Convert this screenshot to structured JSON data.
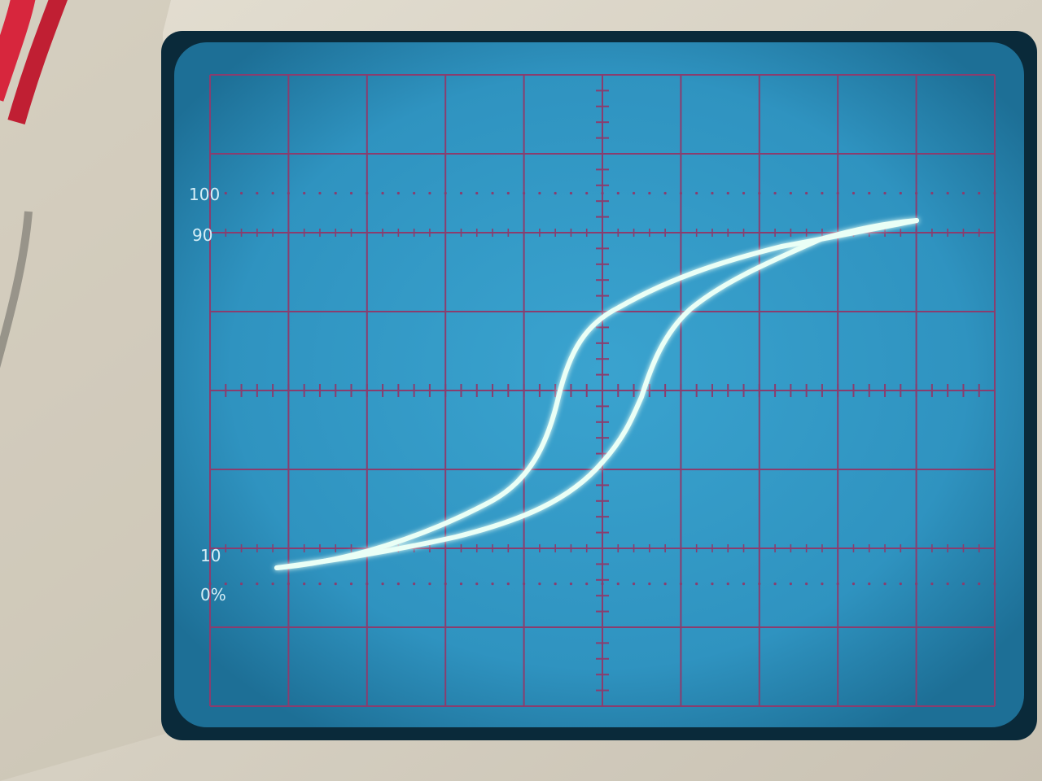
{
  "scope": {
    "graticule_labels": {
      "top_100": "100",
      "upper_90": "90",
      "lower_10": "10",
      "bottom_0": "0%"
    },
    "divisions": {
      "horizontal": 10,
      "vertical": 8
    },
    "minor_ticks_per_division": 5,
    "trace": {
      "shape": "hysteresis-loop",
      "color": "#eafff6",
      "glow_color": "#9ff8e6"
    }
  },
  "colors": {
    "screen": "#2f93c0",
    "screen_edge": "#0a2a3a",
    "grid": "#8a3d6e",
    "bezel": "#d9d3c4",
    "bezel_shadow": "#a29c8e",
    "cable": "#d7263d",
    "label": "#d6eef7"
  }
}
